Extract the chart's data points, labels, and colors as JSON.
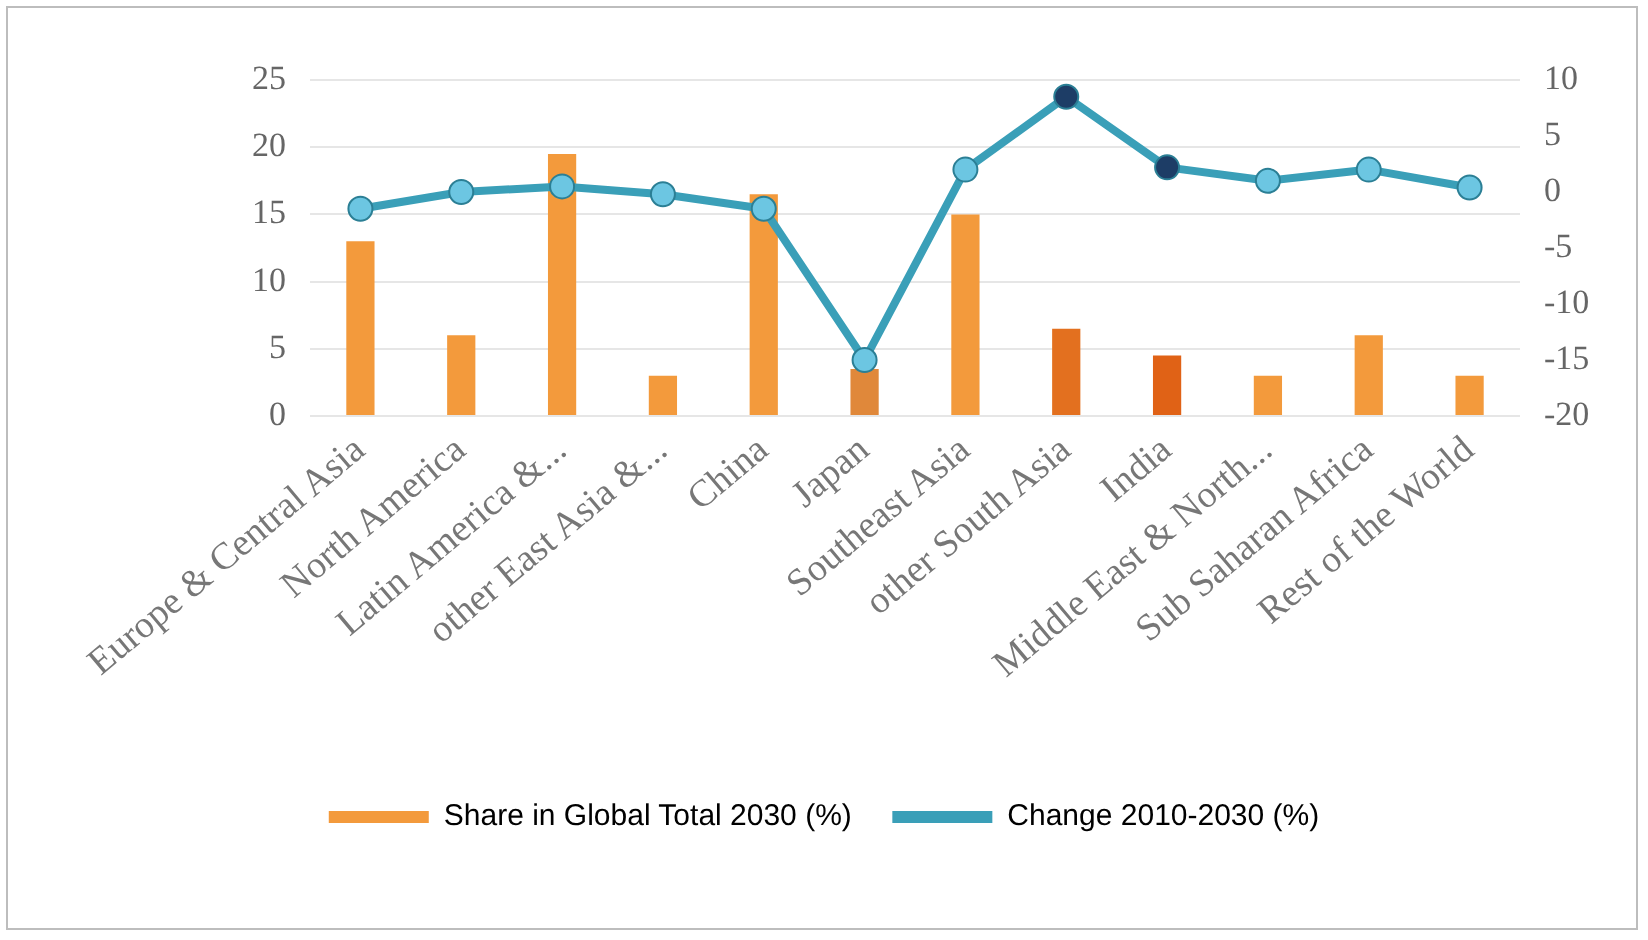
{
  "chart_data": {
    "type": "bar",
    "categories": [
      "Europe & Central Asia",
      "North America",
      "Latin America &...",
      "other East Asia &...",
      "China",
      "Japan",
      "Southeast Asia",
      "other South Asia",
      "India",
      "Middle East & North...",
      "Sub Saharan Africa",
      "Rest of the World"
    ],
    "series": [
      {
        "name": "Share in Global Total 2030 (%)",
        "color": "#f39a3c",
        "colors": [
          "#f39a3c",
          "#f39a3c",
          "#f39a3c",
          "#f39a3c",
          "#f39a3c",
          "#e0883a",
          "#f39a3c",
          "#e3701f",
          "#e06216",
          "#f39a3c",
          "#f39a3c",
          "#f39a3c"
        ],
        "values": [
          13,
          6,
          19.5,
          3,
          16.5,
          3.5,
          15,
          6.5,
          4.5,
          3,
          6,
          3
        ]
      },
      {
        "name": "Change 2010-2030 (%)",
        "type": "line",
        "axis": "y2",
        "color": "#3a9fb8",
        "colors": [
          "#6cc6e2",
          "#6cc6e2",
          "#6cc6e2",
          "#6cc6e2",
          "#6cc6e2",
          "#6cc6e2",
          "#6cc6e2",
          "#1d3d66",
          "#1d3d66",
          "#6cc6e2",
          "#6cc6e2",
          "#6cc6e2"
        ],
        "values": [
          -1.5,
          0,
          0.5,
          -0.2,
          -1.5,
          -15,
          2,
          8.5,
          2.2,
          1,
          2,
          0.4
        ]
      }
    ],
    "ylim": [
      0,
      25
    ],
    "yticks": [
      0,
      5,
      10,
      15,
      20,
      25
    ],
    "y2lim": [
      -20,
      10
    ],
    "y2ticks": [
      -20,
      -15,
      -10,
      -5,
      0,
      5,
      10
    ],
    "grid": "y",
    "legend": "bottom",
    "marker": "circle",
    "line_style": "solid"
  }
}
